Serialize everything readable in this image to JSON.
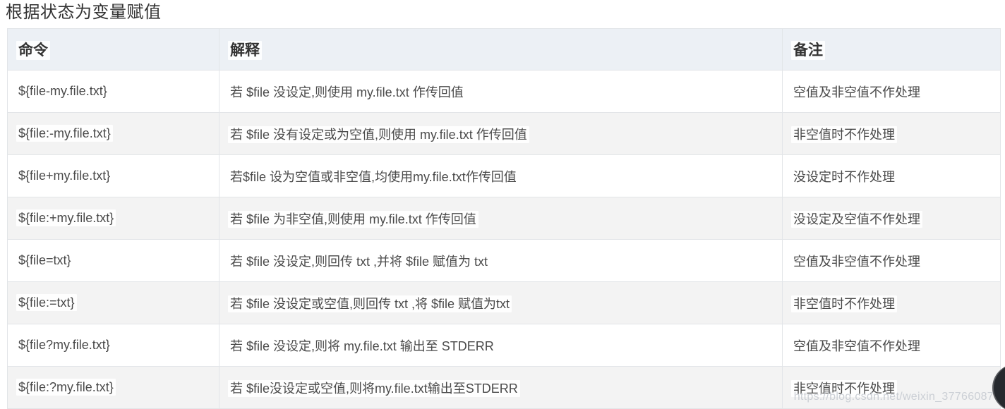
{
  "page": {
    "title": "根据状态为变量赋值",
    "watermark": "https://blog.csdn.net/weixin_37766087"
  },
  "table": {
    "columns": [
      "命令",
      "解释",
      "备注"
    ],
    "rows": [
      {
        "command": "${file-my.file.txt}",
        "explanation": "若 $file 没设定,则使用 my.file.txt 作传回值",
        "remark": "空值及非空值不作处理"
      },
      {
        "command": "${file:-my.file.txt}",
        "explanation": "若 $file 没有设定或为空值,则使用 my.file.txt 作传回值",
        "remark": "非空值时不作处理"
      },
      {
        "command": "${file+my.file.txt}",
        "explanation": "若$file 设为空值或非空值,均使用my.file.txt作传回值",
        "remark": "没设定时不作处理"
      },
      {
        "command": "${file:+my.file.txt}",
        "explanation": "若 $file 为非空值,则使用 my.file.txt 作传回值",
        "remark": "没设定及空值不作处理"
      },
      {
        "command": "${file=txt}",
        "explanation": "若 $file 没设定,则回传 txt ,并将 $file 赋值为 txt",
        "remark": "空值及非空值不作处理"
      },
      {
        "command": "${file:=txt}",
        "explanation": "若 $file 没设定或空值,则回传 txt ,将 $file 赋值为txt",
        "remark": "非空值时不作处理"
      },
      {
        "command": "${file?my.file.txt}",
        "explanation": "若 $file 没设定,则将 my.file.txt 输出至 STDERR",
        "remark": "空值及非空值不作处理"
      },
      {
        "command": "${file:?my.file.txt}",
        "explanation": "若 $file没设定或空值,则将my.file.txt输出至STDERR",
        "remark": "非空值时不作处理"
      }
    ]
  },
  "colors": {
    "header_bg": "#ecf0f5",
    "row_alt_bg": "#f3f3f3",
    "border": "#e2e5e8",
    "title_text": "#333333",
    "cell_text": "#4a4a4a",
    "watermark_text": "#c6cbd1",
    "logo_circle": "#26292e"
  }
}
